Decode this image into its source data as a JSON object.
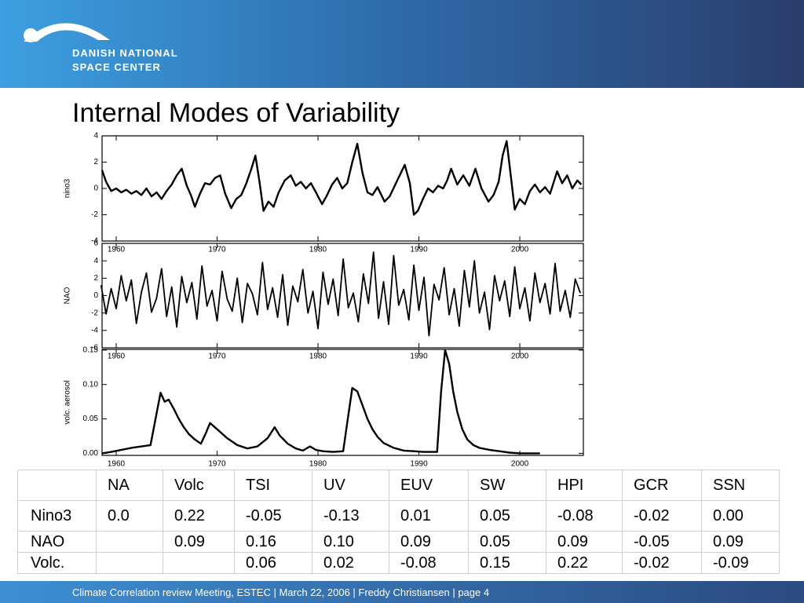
{
  "header": {
    "org_line1": "DANISH NATIONAL",
    "org_line2": "SPACE CENTER"
  },
  "title": "Internal Modes of Variability",
  "chart_data": [
    {
      "type": "line",
      "ylabel": "nino3",
      "color": "#000000",
      "xlim": [
        1958.6,
        2006.3
      ],
      "xticks": [
        1960,
        1970,
        1980,
        1990,
        2000
      ],
      "ylim": [
        -4,
        4
      ],
      "yticks": [
        -4,
        -2,
        0,
        2,
        4
      ],
      "x": [
        1958.6,
        1959.0,
        1959.5,
        1960.0,
        1960.5,
        1961.0,
        1961.5,
        1962.0,
        1962.5,
        1963.0,
        1963.5,
        1964.0,
        1964.5,
        1965.0,
        1965.5,
        1966.0,
        1966.5,
        1967.0,
        1967.4,
        1967.8,
        1968.3,
        1968.8,
        1969.3,
        1969.8,
        1970.3,
        1970.8,
        1971.4,
        1971.9,
        1972.4,
        1972.9,
        1973.4,
        1973.8,
        1974.2,
        1974.6,
        1975.1,
        1975.6,
        1976.1,
        1976.7,
        1977.3,
        1977.8,
        1978.3,
        1978.8,
        1979.3,
        1979.8,
        1980.4,
        1980.9,
        1981.4,
        1981.9,
        1982.4,
        1982.9,
        1983.4,
        1983.9,
        1984.4,
        1984.9,
        1985.4,
        1985.9,
        1986.6,
        1987.1,
        1987.6,
        1988.1,
        1988.6,
        1989.1,
        1989.5,
        1989.9,
        1990.4,
        1990.9,
        1991.4,
        1991.9,
        1992.4,
        1992.8,
        1993.2,
        1993.8,
        1994.4,
        1995.0,
        1995.6,
        1996.2,
        1996.9,
        1997.4,
        1997.9,
        1998.3,
        1998.7,
        1999.1,
        1999.5,
        2000.0,
        2000.5,
        2001.0,
        2001.5,
        2002.0,
        2002.5,
        2003.0,
        2003.7,
        2004.2,
        2004.7,
        2005.2,
        2005.7,
        2006.1
      ],
      "values": [
        1.4,
        0.5,
        -0.2,
        0.0,
        -0.3,
        -0.1,
        -0.4,
        -0.2,
        -0.5,
        0.0,
        -0.6,
        -0.3,
        -0.8,
        -0.2,
        0.3,
        1.0,
        1.5,
        0.2,
        -0.5,
        -1.4,
        -0.4,
        0.4,
        0.3,
        0.8,
        1.0,
        -0.4,
        -1.5,
        -0.8,
        -0.5,
        0.4,
        1.5,
        2.5,
        0.5,
        -1.7,
        -1.0,
        -1.4,
        -0.3,
        0.6,
        1.0,
        0.2,
        0.5,
        0.0,
        0.4,
        -0.3,
        -1.2,
        -0.5,
        0.3,
        0.8,
        0.0,
        0.4,
        2.0,
        3.4,
        1.2,
        -0.3,
        -0.5,
        0.1,
        -1.0,
        -0.6,
        0.2,
        1.0,
        1.8,
        0.4,
        -2.0,
        -1.7,
        -0.8,
        0.0,
        -0.3,
        0.2,
        0.0,
        0.6,
        1.5,
        0.3,
        1.0,
        0.2,
        1.5,
        0.0,
        -1.0,
        -0.5,
        0.5,
        2.5,
        3.6,
        1.0,
        -1.6,
        -0.8,
        -1.2,
        -0.2,
        0.3,
        -0.3,
        0.1,
        -0.4,
        1.3,
        0.4,
        1.0,
        0.0,
        0.6,
        0.3
      ]
    },
    {
      "type": "line",
      "ylabel": "NAO",
      "color": "#000000",
      "xlim": [
        1958.6,
        2006.3
      ],
      "xticks": [
        1960,
        1970,
        1980,
        1990,
        2000
      ],
      "ylim": [
        -6,
        6
      ],
      "yticks": [
        -6,
        -4,
        -2,
        0,
        2,
        4,
        6
      ],
      "x": [
        1958.5,
        1959,
        1959.5,
        1960,
        1960.5,
        1961,
        1961.5,
        1962,
        1962.5,
        1963,
        1963.5,
        1964,
        1964.5,
        1965,
        1965.5,
        1966,
        1966.5,
        1967,
        1967.5,
        1968,
        1968.5,
        1969,
        1969.5,
        1970,
        1970.5,
        1971,
        1971.5,
        1972,
        1972.5,
        1973,
        1973.5,
        1974,
        1974.5,
        1975,
        1975.5,
        1976,
        1976.5,
        1977,
        1977.5,
        1978,
        1978.5,
        1979,
        1979.5,
        1980,
        1980.5,
        1981,
        1981.5,
        1982,
        1982.5,
        1983,
        1983.5,
        1984,
        1984.5,
        1985,
        1985.5,
        1986,
        1986.5,
        1987,
        1987.5,
        1988,
        1988.5,
        1989,
        1989.5,
        1990,
        1990.5,
        1991,
        1991.5,
        1992,
        1992.5,
        1993,
        1993.5,
        1994,
        1994.5,
        1995,
        1995.5,
        1996,
        1996.5,
        1997,
        1997.5,
        1998,
        1998.5,
        1999,
        1999.5,
        2000,
        2000.5,
        2001,
        2001.5,
        2002,
        2002.5,
        2003,
        2003.5,
        2004,
        2004.5,
        2005,
        2005.5,
        2006
      ],
      "values": [
        1.2,
        -2.1,
        0.8,
        -1.5,
        2.3,
        -0.6,
        1.8,
        -3.2,
        0.4,
        2.6,
        -1.9,
        -0.3,
        3.1,
        -2.4,
        1.0,
        -3.6,
        2.2,
        -0.8,
        1.5,
        -2.7,
        3.4,
        -1.2,
        0.6,
        -2.9,
        2.8,
        -0.4,
        -1.8,
        2.0,
        -3.1,
        1.4,
        0.2,
        -2.2,
        3.8,
        -1.6,
        0.9,
        -2.5,
        2.4,
        -3.4,
        1.1,
        -0.7,
        3.0,
        -2.0,
        0.5,
        -3.8,
        2.7,
        -1.0,
        1.9,
        -2.3,
        4.2,
        -1.4,
        0.3,
        -3.0,
        2.5,
        -0.9,
        5.0,
        -2.6,
        1.6,
        -3.3,
        4.6,
        -1.1,
        0.7,
        -2.8,
        3.5,
        -1.7,
        2.1,
        -4.6,
        1.3,
        -0.5,
        3.2,
        -2.2,
        0.8,
        -3.5,
        2.9,
        -1.3,
        4.0,
        -2.0,
        0.4,
        -3.9,
        2.3,
        -0.6,
        1.7,
        -2.4,
        3.3,
        -1.5,
        0.9,
        -2.9,
        2.6,
        -0.8,
        1.4,
        -2.1,
        3.7,
        -1.8,
        0.6,
        -2.5,
        1.9,
        0.3
      ]
    },
    {
      "type": "line",
      "ylabel": "volc. aerosol",
      "color": "#000000",
      "xlim": [
        1958.6,
        2006.3
      ],
      "xticks": [
        1960,
        1970,
        1980,
        1990,
        2000
      ],
      "ylim": [
        -0.003,
        0.151
      ],
      "yticks": [
        {
          "value": 0,
          "label": "0.00"
        },
        0.05,
        {
          "value": 0.1,
          "label": "0.10"
        },
        0.15
      ],
      "x": [
        1958.6,
        1959.5,
        1960.5,
        1961.5,
        1962.5,
        1963.4,
        1963.9,
        1964.4,
        1964.8,
        1965.2,
        1965.7,
        1966.2,
        1966.7,
        1967.2,
        1967.8,
        1968.4,
        1968.9,
        1969.3,
        1970.0,
        1971.0,
        1972.0,
        1973.0,
        1974.0,
        1975.0,
        1975.7,
        1976.2,
        1977.0,
        1977.8,
        1978.5,
        1979.2,
        1979.8,
        1980.5,
        1981.5,
        1982.5,
        1982.9,
        1983.4,
        1983.9,
        1984.4,
        1984.9,
        1985.4,
        1985.9,
        1986.5,
        1987.5,
        1988.5,
        1989.5,
        1990.5,
        1991.8,
        1992.2,
        1992.6,
        1993.0,
        1993.4,
        1993.8,
        1994.3,
        1994.8,
        1995.4,
        1996.0,
        1997.0,
        1998.0,
        1999.0,
        2000.0,
        2001.0,
        2002.0
      ],
      "values": [
        0.0,
        0.002,
        0.005,
        0.008,
        0.01,
        0.012,
        0.05,
        0.088,
        0.075,
        0.078,
        0.065,
        0.05,
        0.038,
        0.028,
        0.02,
        0.014,
        0.03,
        0.044,
        0.035,
        0.022,
        0.012,
        0.007,
        0.01,
        0.022,
        0.038,
        0.026,
        0.014,
        0.007,
        0.004,
        0.01,
        0.005,
        0.003,
        0.002,
        0.003,
        0.045,
        0.095,
        0.09,
        0.07,
        0.05,
        0.035,
        0.024,
        0.015,
        0.008,
        0.004,
        0.003,
        0.002,
        0.002,
        0.09,
        0.15,
        0.13,
        0.09,
        0.06,
        0.035,
        0.02,
        0.012,
        0.008,
        0.005,
        0.003,
        0.001,
        0.0,
        0.0,
        0.0
      ]
    }
  ],
  "table": {
    "columns": [
      "NA",
      "Volc",
      "TSI",
      "UV",
      "EUV",
      "SW",
      "HPI",
      "GCR",
      "SSN"
    ],
    "rows": [
      {
        "label": "Nino3",
        "cells": [
          "0.0",
          "0.22",
          "-0.05",
          "-0.13",
          "0.01",
          "0.05",
          "-0.08",
          "-0.02",
          "0.00"
        ]
      },
      {
        "label": "NAO",
        "cells": [
          null,
          "0.09",
          "0.16",
          "0.10",
          "0.09",
          "0.05",
          "0.09",
          "-0.05",
          "0.09"
        ]
      },
      {
        "label": "Volc.",
        "cells": [
          null,
          null,
          "0.06",
          "0.02",
          "-0.08",
          "0.15",
          "0.22",
          "-0.02",
          "-0.09"
        ]
      }
    ]
  },
  "footer": "Climate Correlation review Meeting, ESTEC | March 22, 2006 | Freddy Christiansen | page 4"
}
